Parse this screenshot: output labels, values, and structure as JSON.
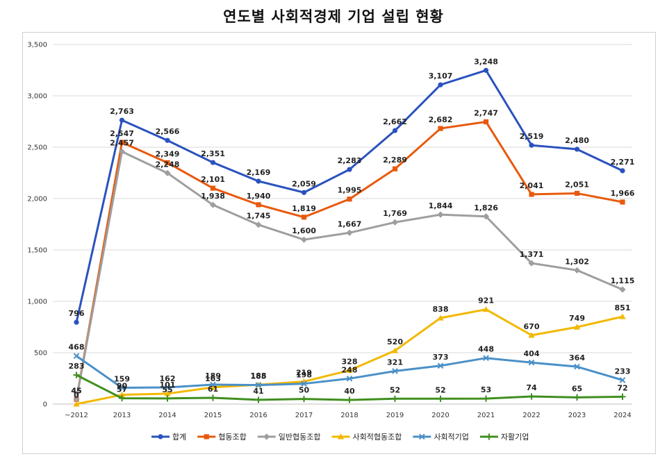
{
  "chart_data": {
    "type": "line",
    "title": "연도별 사회적경제 기업 설립 현황",
    "xlabel": "",
    "ylabel": "",
    "ylim": [
      0,
      3500
    ],
    "yticks": [
      0,
      500,
      1000,
      1500,
      2000,
      2500,
      3000,
      3500
    ],
    "ytick_labels": [
      "0",
      "500",
      "1,000",
      "1,500",
      "2,000",
      "2,500",
      "3,000",
      "3,500"
    ],
    "categories": [
      "~2012",
      "2013",
      "2014",
      "2015",
      "2016",
      "2017",
      "2018",
      "2019",
      "2020",
      "2021",
      "2022",
      "2023",
      "2024"
    ],
    "grid": true,
    "legend_position": "bottom",
    "series": [
      {
        "name": "합계",
        "color": "#2a52be",
        "marker": "circle",
        "values": [
          796,
          2763,
          2566,
          2351,
          2169,
          2059,
          2283,
          2662,
          3107,
          3248,
          2519,
          2480,
          2271
        ],
        "labels": [
          "796",
          "2,763",
          "2,566",
          "2,351",
          "2,169",
          "2,059",
          "2,283",
          "2,662",
          "3,107",
          "3,248",
          "2,519",
          "2,480",
          "2,271"
        ]
      },
      {
        "name": "협동조합",
        "color": "#e8590c",
        "marker": "square",
        "values": [
          45,
          2547,
          2349,
          2101,
          1940,
          1819,
          1995,
          2289,
          2682,
          2747,
          2041,
          2051,
          1966
        ],
        "labels": [
          "45",
          "2,547",
          "2,349",
          "2,101",
          "1,940",
          "1,819",
          "1,995",
          "2,289",
          "2,682",
          "2,747",
          "2,041",
          "2,051",
          "1,966"
        ]
      },
      {
        "name": "일반협동조합",
        "color": "#9e9e9e",
        "marker": "diamond",
        "values": [
          45,
          2457,
          2248,
          1938,
          1745,
          1600,
          1667,
          1769,
          1844,
          1826,
          1371,
          1302,
          1115
        ],
        "labels": [
          "45",
          "2,457",
          "2,248",
          "1,938",
          "1,745",
          "1,600",
          "1,667",
          "1,769",
          "1,844",
          "1,826",
          "1,371",
          "1,302",
          "1,115"
        ]
      },
      {
        "name": "사회적협동조합",
        "color": "#f2b800",
        "marker": "triangle",
        "values": [
          0,
          90,
          101,
          163,
          188,
          219,
          328,
          520,
          838,
          921,
          670,
          749,
          851
        ],
        "labels": [
          "0",
          "90",
          "101",
          "163",
          "188",
          "219",
          "328",
          "520",
          "838",
          "921",
          "670",
          "749",
          "851"
        ]
      },
      {
        "name": "사회적기업",
        "color": "#4a90c8",
        "marker": "x",
        "values": [
          468,
          159,
          162,
          189,
          185,
          198,
          248,
          321,
          373,
          448,
          404,
          364,
          233
        ],
        "labels": [
          "468",
          "159",
          "162",
          "189",
          "185",
          "198",
          "248",
          "321",
          "373",
          "448",
          "404",
          "364",
          "233"
        ]
      },
      {
        "name": "자활기업",
        "color": "#3f8f1f",
        "marker": "plus",
        "values": [
          283,
          57,
          55,
          61,
          41,
          50,
          40,
          52,
          52,
          53,
          74,
          65,
          72
        ],
        "labels": [
          "283",
          "57",
          "55",
          "61",
          "41",
          "50",
          "40",
          "52",
          "52",
          "53",
          "74",
          "65",
          "72"
        ]
      }
    ]
  }
}
